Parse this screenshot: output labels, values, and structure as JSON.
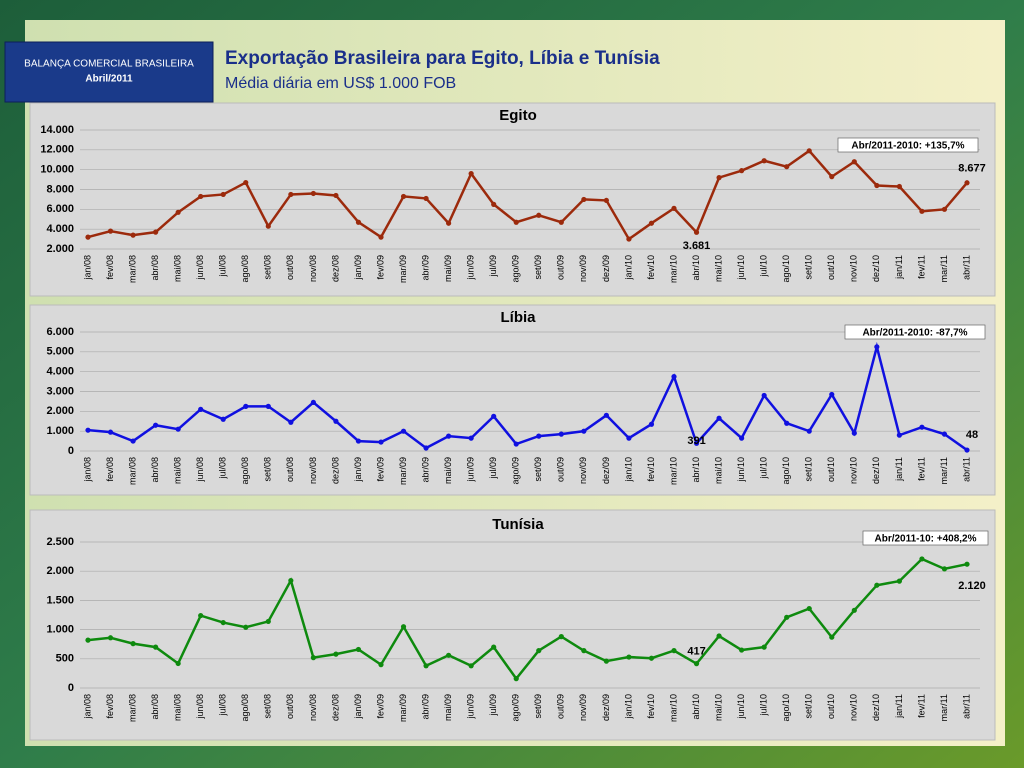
{
  "header": {
    "box_title": "BALANÇA COMERCIAL BRASILEIRA",
    "box_date": "Abril/2011",
    "title": "Exportação Brasileira para Egito, Líbia e Tunísia",
    "subtitle": "Média diária em US$ 1.000 FOB"
  },
  "chart_data": [
    {
      "type": "line",
      "title": "Egito",
      "annotation": "Abr/2011-2010: +135,7%",
      "color": "#9c2a0c",
      "grid": true,
      "categories": [
        "jan/08",
        "fev/08",
        "mar/08",
        "abr/08",
        "mai/08",
        "jun/08",
        "jul/08",
        "ago/08",
        "set/08",
        "out/08",
        "nov/08",
        "dez/08",
        "jan/09",
        "fev/09",
        "mar/09",
        "abr/09",
        "mai/09",
        "jun/09",
        "jul/09",
        "ago/09",
        "set/09",
        "out/09",
        "nov/09",
        "dez/09",
        "jan/10",
        "fev/10",
        "mar/10",
        "abr/10",
        "mai/10",
        "jun/10",
        "jul/10",
        "ago/10",
        "set/10",
        "out/10",
        "nov/10",
        "dez/10",
        "jan/11",
        "fev/11",
        "mar/11",
        "abr/11"
      ],
      "values": [
        3200,
        3800,
        3400,
        3700,
        5700,
        7300,
        7500,
        8700,
        4300,
        7500,
        7600,
        7400,
        4700,
        3200,
        7300,
        7100,
        4600,
        9600,
        6500,
        4700,
        5400,
        4700,
        7000,
        6900,
        3000,
        4600,
        6100,
        3681,
        9200,
        9900,
        10900,
        10300,
        11900,
        9300,
        10800,
        8400,
        8300,
        5800,
        6000,
        8677
      ],
      "value_labels": [
        null,
        null,
        null,
        null,
        null,
        null,
        null,
        null,
        null,
        null,
        null,
        null,
        null,
        null,
        null,
        null,
        null,
        null,
        null,
        null,
        null,
        null,
        null,
        null,
        null,
        null,
        null,
        "3.681",
        null,
        null,
        null,
        null,
        null,
        null,
        null,
        null,
        null,
        null,
        null,
        "8.677"
      ],
      "ylim": [
        2000,
        14000
      ],
      "yticks": [
        {
          "value": 2000,
          "label": "2.000"
        },
        {
          "value": 4000,
          "label": "4.000"
        },
        {
          "value": 6000,
          "label": "6.000"
        },
        {
          "value": 8000,
          "label": "8.000"
        },
        {
          "value": 10000,
          "label": "10.000"
        },
        {
          "value": 12000,
          "label": "12.000"
        },
        {
          "value": 14000,
          "label": "14.000"
        }
      ]
    },
    {
      "type": "line",
      "title": "Líbia",
      "annotation": "Abr/2011-2010: -87,7%",
      "color": "#1010e0",
      "grid": true,
      "categories": [
        "jan/08",
        "fev/08",
        "mar/08",
        "abr/08",
        "mai/08",
        "jun/08",
        "jul/08",
        "ago/08",
        "set/08",
        "out/08",
        "nov/08",
        "dez/08",
        "jan/09",
        "fev/09",
        "mar/09",
        "abr/09",
        "mai/09",
        "jun/09",
        "jul/09",
        "ago/09",
        "set/09",
        "out/09",
        "nov/09",
        "dez/09",
        "jan/10",
        "fev/10",
        "mar/10",
        "abr/10",
        "mai/10",
        "jun/10",
        "jul/10",
        "ago/10",
        "set/10",
        "out/10",
        "nov/10",
        "dez/10",
        "jan/11",
        "fev/11",
        "mar/11",
        "abr/11"
      ],
      "values": [
        1050,
        950,
        500,
        1300,
        1100,
        2100,
        1600,
        2250,
        2250,
        1450,
        2450,
        1500,
        500,
        450,
        1000,
        150,
        750,
        650,
        1750,
        350,
        750,
        850,
        1000,
        1800,
        650,
        1350,
        3750,
        391,
        1650,
        650,
        2800,
        1400,
        1000,
        2850,
        900,
        5250,
        800,
        1200,
        850,
        48
      ],
      "value_labels": [
        null,
        null,
        null,
        null,
        null,
        null,
        null,
        null,
        null,
        null,
        null,
        null,
        null,
        null,
        null,
        null,
        null,
        null,
        null,
        null,
        null,
        null,
        null,
        null,
        null,
        null,
        null,
        "391",
        null,
        null,
        null,
        null,
        null,
        null,
        null,
        null,
        null,
        null,
        null,
        "48"
      ],
      "ylim": [
        0,
        6000
      ],
      "yticks": [
        0,
        {
          "value": 1000,
          "label": "1.000"
        },
        {
          "value": 2000,
          "label": "2.000"
        },
        {
          "value": 3000,
          "label": "3.000"
        },
        {
          "value": 4000,
          "label": "4.000"
        },
        {
          "value": 5000,
          "label": "5.000"
        },
        {
          "value": 6000,
          "label": "6.000"
        }
      ]
    },
    {
      "type": "line",
      "title": "Tunísia",
      "annotation": "Abr/2011-10: +408,2%",
      "color": "#0e8a0e",
      "grid": true,
      "categories": [
        "jan/08",
        "fev/08",
        "mar/08",
        "abr/08",
        "mai/08",
        "jun/08",
        "jul/08",
        "ago/08",
        "set/08",
        "out/08",
        "nov/08",
        "dez/08",
        "jan/09",
        "fev/09",
        "mar/09",
        "abr/09",
        "mai/09",
        "jun/09",
        "jul/09",
        "ago/09",
        "set/09",
        "out/09",
        "nov/09",
        "dez/09",
        "jan/10",
        "fev/10",
        "mar/10",
        "abr/10",
        "mai/10",
        "jun/10",
        "jul/10",
        "ago/10",
        "set/10",
        "out/10",
        "nov/10",
        "dez/10",
        "jan/11",
        "fev/11",
        "mar/11",
        "abr/11"
      ],
      "values": [
        820,
        860,
        760,
        700,
        420,
        1240,
        1120,
        1040,
        1140,
        1840,
        520,
        580,
        660,
        400,
        1050,
        380,
        560,
        380,
        700,
        160,
        640,
        880,
        640,
        460,
        530,
        510,
        640,
        417,
        890,
        650,
        700,
        1210,
        1360,
        870,
        1330,
        1760,
        1830,
        2210,
        2040,
        2120
      ],
      "value_labels": [
        null,
        null,
        null,
        null,
        null,
        null,
        null,
        null,
        null,
        null,
        null,
        null,
        null,
        null,
        null,
        null,
        null,
        null,
        null,
        null,
        null,
        null,
        null,
        null,
        null,
        null,
        null,
        "417",
        null,
        null,
        null,
        null,
        null,
        null,
        null,
        null,
        null,
        null,
        null,
        "2.120"
      ],
      "ylim": [
        0,
        2500
      ],
      "yticks": [
        0,
        500,
        {
          "value": 1000,
          "label": "1.000"
        },
        {
          "value": 1500,
          "label": "1.500"
        },
        {
          "value": 2000,
          "label": "2.000"
        },
        {
          "value": 2500,
          "label": "2.500"
        }
      ]
    }
  ]
}
